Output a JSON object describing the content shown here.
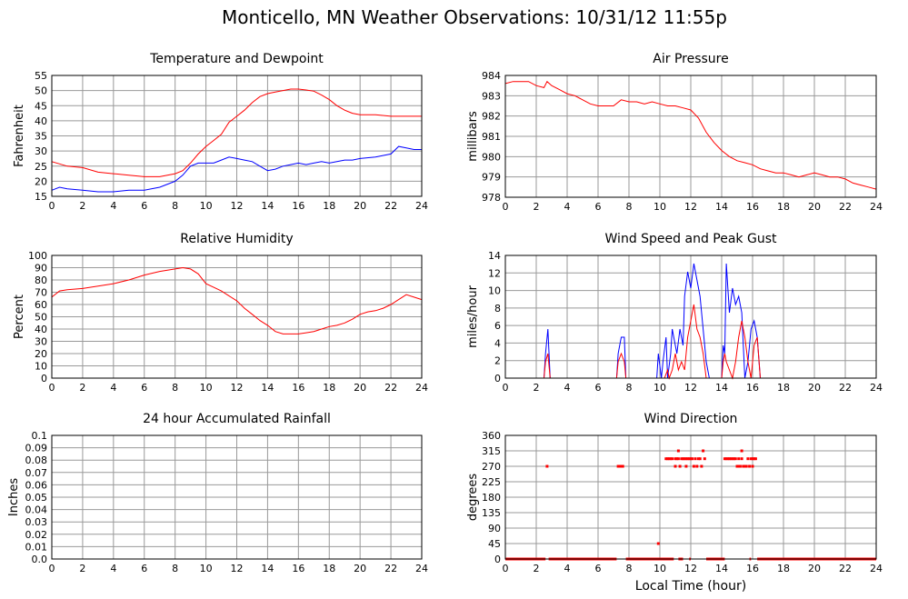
{
  "page_title": "Monticello, MN Weather Observations: 10/31/12 11:55p",
  "x_axis_label": "Local Time (hour)",
  "x_ticks": [
    "0",
    "2",
    "4",
    "6",
    "8",
    "10",
    "12",
    "14",
    "16",
    "18",
    "20",
    "22",
    "24"
  ],
  "colors": {
    "red": "#ff0000",
    "blue": "#0000ff",
    "grid": "#999999"
  },
  "chart_data": [
    {
      "id": "temp",
      "type": "line",
      "title": "Temperature and Dewpoint",
      "ylabel": "Fahrenheit",
      "xlim": [
        0,
        24
      ],
      "ylim": [
        15,
        55
      ],
      "y_ticks": [
        "15",
        "20",
        "25",
        "30",
        "35",
        "40",
        "45",
        "50",
        "55"
      ],
      "grid": true,
      "series": [
        {
          "color": "#ff0000",
          "x": [
            0,
            1,
            2,
            3,
            4,
            5,
            6,
            7,
            8,
            8.5,
            9,
            9.5,
            10,
            10.5,
            11,
            11.5,
            12,
            12.5,
            13,
            13.5,
            14,
            14.5,
            15,
            15.5,
            16,
            16.5,
            17,
            17.5,
            18,
            18.5,
            19,
            19.5,
            20,
            21,
            22,
            23,
            24
          ],
          "y": [
            26.5,
            25,
            24.5,
            23,
            22.5,
            22,
            21.5,
            21.5,
            22.5,
            23.5,
            26,
            29,
            31.5,
            33.5,
            35.5,
            39.5,
            41.5,
            43.5,
            46,
            48,
            49,
            49.5,
            50,
            50.5,
            50.5,
            50.2,
            49.8,
            48.5,
            47,
            45,
            43.5,
            42.5,
            42,
            42,
            41.5,
            41.5,
            41.5
          ]
        },
        {
          "color": "#0000ff",
          "x": [
            0,
            0.5,
            1,
            2,
            3,
            4,
            5,
            6,
            7,
            8,
            8.5,
            9,
            9.5,
            10,
            10.5,
            11,
            11.5,
            12,
            12.5,
            13,
            13.5,
            14,
            14.5,
            15,
            15.5,
            16,
            16.5,
            17,
            17.5,
            18,
            18.5,
            19,
            19.5,
            20,
            21,
            22,
            22.5,
            23,
            23.5,
            24
          ],
          "y": [
            17,
            18,
            17.5,
            17,
            16.5,
            16.5,
            17,
            17,
            18,
            20,
            22,
            25,
            26,
            26,
            26,
            27,
            28,
            27.5,
            27,
            26.5,
            25,
            23.5,
            24,
            25,
            25.5,
            26,
            25.5,
            26,
            26.5,
            26,
            26.5,
            27,
            27,
            27.5,
            28,
            29,
            31.5,
            31,
            30.5,
            30.5
          ]
        }
      ]
    },
    {
      "id": "pressure",
      "type": "line",
      "title": "Air Pressure",
      "ylabel": "millibars",
      "xlim": [
        0,
        24
      ],
      "ylim": [
        978,
        984
      ],
      "y_ticks": [
        "978",
        "979",
        "980",
        "981",
        "982",
        "983",
        "984"
      ],
      "grid": true,
      "series": [
        {
          "color": "#ff0000",
          "x": [
            0,
            0.5,
            1,
            1.5,
            2,
            2.5,
            2.7,
            3,
            3.5,
            4,
            4.5,
            5,
            5.5,
            6,
            6.5,
            7,
            7.5,
            8,
            8.5,
            9,
            9.5,
            10,
            10.5,
            11,
            11.5,
            12,
            12.5,
            13,
            13.5,
            14,
            14.5,
            15,
            15.5,
            16,
            16.5,
            17,
            17.5,
            18,
            18.5,
            19,
            19.5,
            20,
            20.5,
            21,
            21.5,
            22,
            22.5,
            23,
            23.5,
            24
          ],
          "y": [
            983.6,
            983.7,
            983.7,
            983.7,
            983.5,
            983.4,
            983.7,
            983.5,
            983.3,
            983.1,
            983,
            982.8,
            982.6,
            982.5,
            982.5,
            982.5,
            982.8,
            982.7,
            982.7,
            982.6,
            982.7,
            982.6,
            982.5,
            982.5,
            982.4,
            982.3,
            981.9,
            981.2,
            980.7,
            980.3,
            980,
            979.8,
            979.7,
            979.6,
            979.4,
            979.3,
            979.2,
            979.2,
            979.1,
            979,
            979.1,
            979.2,
            979.1,
            979,
            979,
            978.9,
            978.7,
            978.6,
            978.5,
            978.4
          ]
        }
      ]
    },
    {
      "id": "rh",
      "type": "line",
      "title": "Relative Humidity",
      "ylabel": "Percent",
      "xlim": [
        0,
        24
      ],
      "ylim": [
        0,
        100
      ],
      "y_ticks": [
        "0",
        "10",
        "20",
        "30",
        "40",
        "50",
        "60",
        "70",
        "80",
        "90",
        "100"
      ],
      "grid": true,
      "series": [
        {
          "color": "#ff0000",
          "x": [
            0,
            0.5,
            1,
            2,
            3,
            4,
            5,
            6,
            7,
            8,
            8.5,
            9,
            9.5,
            10,
            10.5,
            11,
            11.5,
            12,
            12.5,
            13,
            13.5,
            14,
            14.5,
            15,
            15.5,
            16,
            16.5,
            17,
            17.5,
            18,
            18.5,
            19,
            19.5,
            20,
            20.5,
            21,
            21.5,
            22,
            22.5,
            23,
            23.5,
            24
          ],
          "y": [
            66,
            71,
            72,
            73,
            75,
            77,
            80,
            84,
            87,
            89,
            90,
            89,
            85,
            77,
            74,
            71,
            67,
            63,
            57,
            52,
            47,
            43,
            38,
            36,
            36,
            36,
            37,
            38,
            40,
            42,
            43,
            45,
            48,
            52,
            54,
            55,
            57,
            60,
            64,
            68,
            66,
            64
          ]
        }
      ]
    },
    {
      "id": "wind",
      "type": "line",
      "title": "Wind Speed and Peak Gust",
      "ylabel": "miles/hour",
      "xlim": [
        0,
        24
      ],
      "ylim": [
        0,
        15
      ],
      "y_ticks": [
        "0",
        "2",
        "4",
        "6",
        "8",
        "10",
        "12",
        "14"
      ],
      "grid": true,
      "series": [
        {
          "color": "#0000ff",
          "x": [
            0,
            2.5,
            2.6,
            2.75,
            2.9,
            7.2,
            7.3,
            7.5,
            7.7,
            7.8,
            9.8,
            9.9,
            10.1,
            10.2,
            10.4,
            10.5,
            10.7,
            10.8,
            11,
            11.1,
            11.3,
            11.5,
            11.6,
            11.8,
            12,
            12.2,
            12.4,
            12.6,
            12.8,
            13,
            13.2,
            14,
            14.1,
            14.2,
            14.3,
            14.5,
            14.7,
            14.9,
            15.1,
            15.3,
            15.5,
            15.7,
            15.9,
            16.1,
            16.3,
            16.5,
            24
          ],
          "y": [
            0,
            0,
            3,
            6,
            0,
            0,
            3,
            5,
            5,
            0,
            0,
            3,
            0,
            2,
            5,
            0,
            3,
            6,
            4,
            3,
            6,
            4,
            10,
            13,
            11,
            14,
            12,
            10,
            6,
            2,
            0,
            0,
            4,
            3,
            14,
            8,
            11,
            9,
            10,
            8,
            0,
            2,
            6,
            7,
            5,
            0,
            0
          ]
        },
        {
          "color": "#ff0000",
          "x": [
            0,
            2.5,
            2.6,
            2.75,
            2.9,
            7.2,
            7.3,
            7.5,
            7.7,
            7.8,
            10.3,
            10.5,
            10.6,
            10.8,
            11,
            11.2,
            11.4,
            11.6,
            11.8,
            12,
            12.2,
            12.4,
            12.6,
            12.8,
            13,
            14,
            14.1,
            14.2,
            14.3,
            14.5,
            14.7,
            14.9,
            15.1,
            15.3,
            15.5,
            15.7,
            15.9,
            16.1,
            16.3,
            16.5,
            24
          ],
          "y": [
            0,
            0,
            2,
            3,
            0,
            0,
            2,
            3,
            2,
            0,
            0,
            1,
            0,
            1,
            3,
            1,
            2,
            1,
            5,
            7,
            9,
            6,
            5,
            3,
            0,
            0,
            2,
            3,
            2,
            1,
            0,
            2,
            5,
            7,
            5,
            2,
            0,
            4,
            5,
            0,
            0
          ]
        }
      ]
    },
    {
      "id": "rain",
      "type": "line",
      "title": "24 hour Accumulated Rainfall",
      "ylabel": "Inches",
      "xlim": [
        0,
        24
      ],
      "ylim": [
        0,
        0.1
      ],
      "y_ticks": [
        "0.0",
        "0.01",
        "0.02",
        "0.03",
        "0.04",
        "0.05",
        "0.06",
        "0.07",
        "0.08",
        "0.09",
        "0.1"
      ],
      "grid": true,
      "series": [
        {
          "color": "#ff0000",
          "x": [
            0,
            24
          ],
          "y": [
            0,
            0
          ]
        }
      ]
    },
    {
      "id": "dir",
      "type": "scatter",
      "title": "Wind Direction",
      "ylabel": "degrees",
      "xlim": [
        0,
        24
      ],
      "ylim": [
        0,
        360
      ],
      "y_ticks": [
        "0",
        "45",
        "90",
        "135",
        "180",
        "225",
        "270",
        "315",
        "360"
      ],
      "grid": true,
      "baseline_segments": [
        [
          0,
          2.6
        ],
        [
          2.8,
          7.2
        ],
        [
          7.8,
          10.9
        ],
        [
          11.2,
          11.5
        ],
        [
          11.9,
          12.0
        ],
        [
          13.0,
          14.2
        ],
        [
          15.8,
          15.9
        ],
        [
          16.3,
          24
        ]
      ],
      "points": [
        [
          2.7,
          270
        ],
        [
          7.3,
          270
        ],
        [
          7.4,
          270
        ],
        [
          7.5,
          270
        ],
        [
          7.6,
          270
        ],
        [
          9.9,
          45
        ],
        [
          10.4,
          292
        ],
        [
          10.5,
          292
        ],
        [
          10.6,
          292
        ],
        [
          10.7,
          292
        ],
        [
          10.8,
          292
        ],
        [
          11.0,
          292
        ],
        [
          11.0,
          270
        ],
        [
          11.1,
          292
        ],
        [
          11.2,
          315
        ],
        [
          11.2,
          292
        ],
        [
          11.3,
          270
        ],
        [
          11.4,
          292
        ],
        [
          11.5,
          292
        ],
        [
          11.6,
          292
        ],
        [
          11.7,
          292
        ],
        [
          11.7,
          270
        ],
        [
          11.8,
          292
        ],
        [
          11.9,
          292
        ],
        [
          12.0,
          292
        ],
        [
          12.1,
          292
        ],
        [
          12.2,
          270
        ],
        [
          12.3,
          292
        ],
        [
          12.4,
          270
        ],
        [
          12.5,
          292
        ],
        [
          12.6,
          292
        ],
        [
          12.7,
          270
        ],
        [
          12.8,
          315
        ],
        [
          12.9,
          292
        ],
        [
          14.2,
          292
        ],
        [
          14.3,
          292
        ],
        [
          14.4,
          292
        ],
        [
          14.5,
          292
        ],
        [
          14.6,
          292
        ],
        [
          14.7,
          292
        ],
        [
          14.8,
          292
        ],
        [
          14.9,
          292
        ],
        [
          15.0,
          270
        ],
        [
          15.1,
          292
        ],
        [
          15.1,
          270
        ],
        [
          15.2,
          270
        ],
        [
          15.3,
          315
        ],
        [
          15.3,
          292
        ],
        [
          15.4,
          270
        ],
        [
          15.5,
          270
        ],
        [
          15.6,
          270
        ],
        [
          15.7,
          292
        ],
        [
          15.8,
          270
        ],
        [
          15.9,
          292
        ],
        [
          16.0,
          270
        ],
        [
          16.0,
          292
        ],
        [
          16.1,
          292
        ],
        [
          16.2,
          292
        ]
      ]
    }
  ]
}
